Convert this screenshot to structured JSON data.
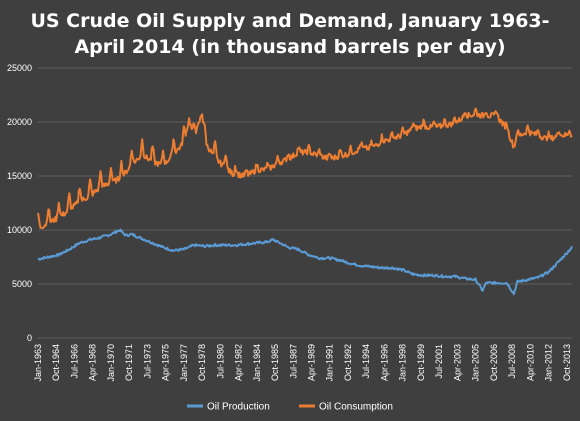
{
  "chart_data": {
    "type": "line",
    "title_lines": [
      "US Crude Oil Supply and Demand, January 1963-",
      "April 2014 (in thousand barrels per day)"
    ],
    "xlabel": "",
    "ylabel": "",
    "ylim": [
      0,
      25000
    ],
    "y_ticks": [
      "0",
      "5000",
      "10000",
      "15000",
      "20000",
      "25000"
    ],
    "x_ticks": [
      "Jan-1963",
      "Oct-1964",
      "Jul-1966",
      "Apr-1968",
      "Jan-1970",
      "Oct-1971",
      "Jul-1973",
      "Apr-1975",
      "Jan-1977",
      "Oct-1978",
      "Jul-1980",
      "Apr-1982",
      "Jan-1984",
      "Oct-1985",
      "Jul-1987",
      "Apr-1989",
      "Jan-1991",
      "Oct-1992",
      "Jul-1994",
      "Apr-1996",
      "Jan-1998",
      "Oct-1999",
      "Jul-2001",
      "Apr-2003",
      "Jan-2005",
      "Oct-2006",
      "Jul-2008",
      "Apr-2010",
      "Jan-2012",
      "Oct-2013"
    ],
    "x_range": [
      "1963-01",
      "2014-04"
    ],
    "grid": "horizontal",
    "legend_position": "bottom",
    "colors": {
      "background": "#3f3f3f",
      "grid": "#5d5d5d",
      "production": "#5b9bd5",
      "consumption": "#ed7d31",
      "text": "#ffffff"
    },
    "series": [
      {
        "name": "Oil Production",
        "color": "#5b9bd5",
        "points": [
          [
            "1963-01",
            7300
          ],
          [
            "1964-01",
            7500
          ],
          [
            "1965-01",
            7700
          ],
          [
            "1966-01",
            8200
          ],
          [
            "1967-01",
            8800
          ],
          [
            "1968-01",
            9100
          ],
          [
            "1969-01",
            9300
          ],
          [
            "1970-01",
            9600
          ],
          [
            "1970-11",
            10000
          ],
          [
            "1971-06",
            9500
          ],
          [
            "1972-01",
            9600
          ],
          [
            "1973-01",
            9200
          ],
          [
            "1974-01",
            8800
          ],
          [
            "1975-01",
            8400
          ],
          [
            "1976-01",
            8100
          ],
          [
            "1977-01",
            8200
          ],
          [
            "1978-01",
            8600
          ],
          [
            "1979-01",
            8500
          ],
          [
            "1980-01",
            8600
          ],
          [
            "1981-01",
            8600
          ],
          [
            "1982-01",
            8600
          ],
          [
            "1983-01",
            8700
          ],
          [
            "1984-01",
            8800
          ],
          [
            "1985-01",
            8900
          ],
          [
            "1985-08",
            9100
          ],
          [
            "1986-06",
            8700
          ],
          [
            "1987-01",
            8400
          ],
          [
            "1988-01",
            8200
          ],
          [
            "1989-01",
            7700
          ],
          [
            "1990-01",
            7400
          ],
          [
            "1991-01",
            7400
          ],
          [
            "1992-01",
            7200
          ],
          [
            "1993-01",
            6900
          ],
          [
            "1994-01",
            6700
          ],
          [
            "1995-01",
            6600
          ],
          [
            "1996-01",
            6500
          ],
          [
            "1997-01",
            6500
          ],
          [
            "1998-01",
            6300
          ],
          [
            "1999-01",
            5900
          ],
          [
            "2000-01",
            5800
          ],
          [
            "2001-01",
            5800
          ],
          [
            "2002-01",
            5700
          ],
          [
            "2003-01",
            5700
          ],
          [
            "2004-01",
            5500
          ],
          [
            "2005-01",
            5400
          ],
          [
            "2005-09",
            4400
          ],
          [
            "2006-01",
            5100
          ],
          [
            "2007-01",
            5100
          ],
          [
            "2008-01",
            5100
          ],
          [
            "2008-09",
            4100
          ],
          [
            "2009-01",
            5200
          ],
          [
            "2010-01",
            5400
          ],
          [
            "2011-01",
            5600
          ],
          [
            "2012-01",
            6100
          ],
          [
            "2013-01",
            7100
          ],
          [
            "2014-04",
            8400
          ]
        ]
      },
      {
        "name": "Oil Consumption",
        "color": "#ed7d31",
        "points": [
          [
            "1963-01",
            10500
          ],
          [
            "1964-01",
            11000
          ],
          [
            "1965-01",
            11500
          ],
          [
            "1966-01",
            12200
          ],
          [
            "1967-01",
            13000
          ],
          [
            "1968-01",
            13500
          ],
          [
            "1969-01",
            14300
          ],
          [
            "1970-01",
            14700
          ],
          [
            "1971-01",
            15200
          ],
          [
            "1972-01",
            16400
          ],
          [
            "1973-01",
            17300
          ],
          [
            "1974-01",
            16700
          ],
          [
            "1975-01",
            16300
          ],
          [
            "1976-01",
            17400
          ],
          [
            "1977-01",
            18400
          ],
          [
            "1977-07",
            20600
          ],
          [
            "1978-01",
            18800
          ],
          [
            "1978-10",
            21200
          ],
          [
            "1979-01",
            18500
          ],
          [
            "1980-01",
            17000
          ],
          [
            "1981-01",
            16100
          ],
          [
            "1982-01",
            15300
          ],
          [
            "1983-01",
            15100
          ],
          [
            "1984-01",
            15700
          ],
          [
            "1985-01",
            15700
          ],
          [
            "1986-01",
            16300
          ],
          [
            "1987-01",
            16700
          ],
          [
            "1988-01",
            17300
          ],
          [
            "1989-01",
            17300
          ],
          [
            "1990-01",
            17000
          ],
          [
            "1991-01",
            16700
          ],
          [
            "1992-01",
            17000
          ],
          [
            "1993-01",
            17200
          ],
          [
            "1994-01",
            17700
          ],
          [
            "1995-01",
            17700
          ],
          [
            "1996-01",
            18300
          ],
          [
            "1997-01",
            18600
          ],
          [
            "1998-01",
            18900
          ],
          [
            "1999-01",
            19500
          ],
          [
            "2000-01",
            19700
          ],
          [
            "2001-01",
            19600
          ],
          [
            "2002-01",
            19800
          ],
          [
            "2003-01",
            20000
          ],
          [
            "2004-01",
            20700
          ],
          [
            "2005-01",
            20800
          ],
          [
            "2006-01",
            20700
          ],
          [
            "2007-01",
            20700
          ],
          [
            "2008-01",
            19500
          ],
          [
            "2008-09",
            17800
          ],
          [
            "2009-01",
            18800
          ],
          [
            "2010-01",
            19200
          ],
          [
            "2011-01",
            18900
          ],
          [
            "2012-01",
            18500
          ],
          [
            "2013-01",
            18900
          ],
          [
            "2014-04",
            18900
          ]
        ]
      }
    ]
  }
}
